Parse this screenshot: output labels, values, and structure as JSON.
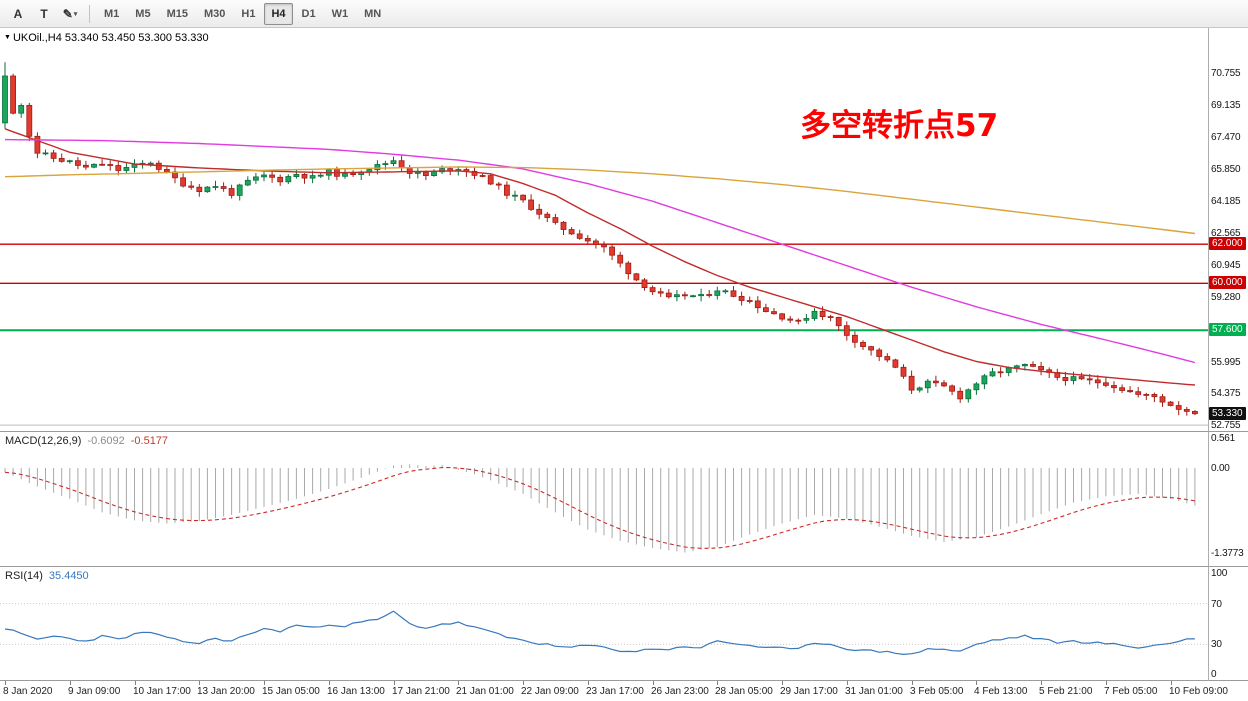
{
  "toolbar": {
    "tool_buttons": [
      {
        "name": "cursor",
        "glyph": "A"
      },
      {
        "name": "text",
        "glyph": "T"
      },
      {
        "name": "draw",
        "glyph": "✎",
        "dropdown": "▾"
      }
    ],
    "timeframes": [
      "M1",
      "M5",
      "M15",
      "M30",
      "H1",
      "H4",
      "D1",
      "W1",
      "MN"
    ],
    "active_timeframe": "H4"
  },
  "chart_header": {
    "marker": "▼",
    "text": "UKOil.,H4 53.340 53.450 53.300 53.330"
  },
  "chart_data": {
    "type": "candlestick",
    "symbol": "UKOil",
    "timeframe": "H4",
    "ohlc_current": {
      "open": "53.340",
      "high": "53.450",
      "low": "53.300",
      "close": "53.330"
    },
    "bars": 148,
    "bars_per_label": 8,
    "price_axis_ticks": [
      "70.755",
      "69.135",
      "67.470",
      "65.850",
      "64.185",
      "62.565",
      "60.945",
      "59.280",
      "57.660",
      "55.995",
      "54.375",
      "52.755"
    ],
    "time_axis_labels": [
      "8 Jan 2020",
      "9 Jan 09:00",
      "10 Jan 17:00",
      "13 Jan 20:00",
      "15 Jan 05:00",
      "16 Jan 13:00",
      "17 Jan 21:00",
      "21 Jan 01:00",
      "22 Jan 09:00",
      "23 Jan 17:00",
      "26 Jan 23:00",
      "28 Jan 05:00",
      "29 Jan 17:00",
      "31 Jan 01:00",
      "3 Feb 05:00",
      "4 Feb 13:00",
      "5 Feb 21:00",
      "7 Feb 05:00",
      "10 Feb 09:00"
    ],
    "hlines": [
      {
        "value": 62.0,
        "label": "62.000",
        "color": "#cc0000",
        "width": 1.3
      },
      {
        "value": 60.0,
        "label": "60.000",
        "color": "#cc0000",
        "width": 1.3
      },
      {
        "value": 57.6,
        "label": "57.600",
        "color": "#00b050",
        "width": 2
      },
      {
        "value": 52.75,
        "label": "",
        "color": "#bdbdbd",
        "width": 1
      }
    ],
    "current_price": {
      "value": 53.33,
      "label": "53.330",
      "bg": "#111111"
    },
    "annotation": {
      "text": "多空转折点57",
      "color": "#FF0000"
    },
    "colors": {
      "up": "#1ba55d",
      "up_dark": "#0c6e3d",
      "down": "#e23a2e",
      "down_dark": "#9c1f15"
    },
    "close_anchors": [
      [
        0,
        70.6
      ],
      [
        1,
        68.7
      ],
      [
        2,
        69.1
      ],
      [
        3,
        67.6
      ],
      [
        4,
        66.7
      ],
      [
        6,
        66.4
      ],
      [
        8,
        66.2
      ],
      [
        10,
        65.9
      ],
      [
        12,
        66.1
      ],
      [
        14,
        65.8
      ],
      [
        16,
        66.0
      ],
      [
        18,
        66.2
      ],
      [
        20,
        65.6
      ],
      [
        22,
        65.1
      ],
      [
        24,
        64.8
      ],
      [
        26,
        65.0
      ],
      [
        28,
        64.6
      ],
      [
        30,
        65.2
      ],
      [
        32,
        65.5
      ],
      [
        34,
        65.3
      ],
      [
        36,
        65.6
      ],
      [
        38,
        65.4
      ],
      [
        40,
        65.7
      ],
      [
        42,
        65.5
      ],
      [
        44,
        65.8
      ],
      [
        46,
        66.0
      ],
      [
        48,
        66.3
      ],
      [
        50,
        65.7
      ],
      [
        52,
        65.5
      ],
      [
        54,
        65.8
      ],
      [
        56,
        65.9
      ],
      [
        58,
        65.6
      ],
      [
        60,
        65.2
      ],
      [
        62,
        64.6
      ],
      [
        64,
        64.2
      ],
      [
        66,
        63.6
      ],
      [
        68,
        63.0
      ],
      [
        70,
        62.6
      ],
      [
        72,
        62.2
      ],
      [
        74,
        61.8
      ],
      [
        76,
        61.0
      ],
      [
        78,
        60.2
      ],
      [
        80,
        59.6
      ],
      [
        82,
        59.2
      ],
      [
        84,
        59.4
      ],
      [
        86,
        59.3
      ],
      [
        88,
        59.7
      ],
      [
        90,
        59.4
      ],
      [
        92,
        59.1
      ],
      [
        94,
        58.6
      ],
      [
        96,
        58.3
      ],
      [
        98,
        58.0
      ],
      [
        100,
        58.6
      ],
      [
        102,
        58.2
      ],
      [
        104,
        57.4
      ],
      [
        106,
        56.8
      ],
      [
        108,
        56.3
      ],
      [
        110,
        55.7
      ],
      [
        112,
        54.6
      ],
      [
        114,
        54.9
      ],
      [
        116,
        54.7
      ],
      [
        118,
        54.2
      ],
      [
        120,
        54.9
      ],
      [
        122,
        55.4
      ],
      [
        124,
        55.6
      ],
      [
        126,
        55.8
      ],
      [
        128,
        55.5
      ],
      [
        130,
        55.2
      ],
      [
        132,
        55.1
      ],
      [
        134,
        55.0
      ],
      [
        136,
        54.9
      ],
      [
        138,
        54.6
      ],
      [
        140,
        54.3
      ],
      [
        142,
        54.2
      ],
      [
        144,
        53.8
      ],
      [
        146,
        53.45
      ],
      [
        147,
        53.33
      ]
    ],
    "moving_averages": [
      {
        "name": "ma-fast-red",
        "color": "#c22b2b",
        "anchors": [
          [
            0,
            67.9
          ],
          [
            8,
            66.7
          ],
          [
            16,
            66.1
          ],
          [
            24,
            65.9
          ],
          [
            32,
            65.75
          ],
          [
            40,
            65.65
          ],
          [
            48,
            65.7
          ],
          [
            56,
            65.75
          ],
          [
            60,
            65.6
          ],
          [
            64,
            65.1
          ],
          [
            68,
            64.5
          ],
          [
            72,
            63.6
          ],
          [
            76,
            62.8
          ],
          [
            80,
            61.9
          ],
          [
            84,
            61.1
          ],
          [
            88,
            60.4
          ],
          [
            92,
            59.8
          ],
          [
            96,
            59.3
          ],
          [
            100,
            58.8
          ],
          [
            104,
            58.3
          ],
          [
            108,
            57.7
          ],
          [
            112,
            57.1
          ],
          [
            116,
            56.5
          ],
          [
            120,
            56.0
          ],
          [
            124,
            55.7
          ],
          [
            128,
            55.5
          ],
          [
            132,
            55.35
          ],
          [
            136,
            55.2
          ],
          [
            140,
            55.05
          ],
          [
            144,
            54.9
          ],
          [
            147,
            54.8
          ]
        ]
      },
      {
        "name": "ma-mid-magenta",
        "color": "#e03ce0",
        "anchors": [
          [
            0,
            67.35
          ],
          [
            12,
            67.3
          ],
          [
            24,
            67.15
          ],
          [
            32,
            67.0
          ],
          [
            40,
            66.85
          ],
          [
            48,
            66.6
          ],
          [
            56,
            66.3
          ],
          [
            64,
            65.85
          ],
          [
            72,
            65.1
          ],
          [
            80,
            64.2
          ],
          [
            88,
            63.1
          ],
          [
            96,
            62.0
          ],
          [
            104,
            60.9
          ],
          [
            112,
            59.8
          ],
          [
            120,
            58.8
          ],
          [
            128,
            57.9
          ],
          [
            134,
            57.3
          ],
          [
            140,
            56.7
          ],
          [
            147,
            55.95
          ]
        ]
      },
      {
        "name": "ma-slow-orange",
        "color": "#d9a43b",
        "anchors": [
          [
            0,
            65.45
          ],
          [
            8,
            65.55
          ],
          [
            16,
            65.62
          ],
          [
            24,
            65.7
          ],
          [
            32,
            65.78
          ],
          [
            40,
            65.85
          ],
          [
            48,
            65.9
          ],
          [
            56,
            65.95
          ],
          [
            64,
            65.92
          ],
          [
            72,
            65.8
          ],
          [
            80,
            65.6
          ],
          [
            88,
            65.35
          ],
          [
            96,
            65.05
          ],
          [
            104,
            64.7
          ],
          [
            112,
            64.3
          ],
          [
            120,
            63.9
          ],
          [
            128,
            63.5
          ],
          [
            136,
            63.1
          ],
          [
            142,
            62.8
          ],
          [
            147,
            62.55
          ]
        ]
      }
    ],
    "macd": {
      "name": "MACD(12,26,9)",
      "main_value": "-0.6092",
      "signal_value": "-0.5177",
      "histogram_color": "#a9a9a9",
      "signal_color": "#cc2b2b",
      "ticks": [
        {
          "label": "0.561",
          "value": 0.561
        },
        {
          "label": "0.00",
          "value": 0
        },
        {
          "label": "-1.3773",
          "value": -1.3773
        }
      ],
      "anchors": [
        [
          0,
          -0.07
        ],
        [
          4,
          -0.3
        ],
        [
          8,
          -0.5
        ],
        [
          12,
          -0.72
        ],
        [
          16,
          -0.85
        ],
        [
          20,
          -0.9
        ],
        [
          24,
          -0.86
        ],
        [
          28,
          -0.76
        ],
        [
          32,
          -0.63
        ],
        [
          36,
          -0.5
        ],
        [
          40,
          -0.34
        ],
        [
          44,
          -0.16
        ],
        [
          46,
          -0.06
        ],
        [
          48,
          0.04
        ],
        [
          50,
          0.06
        ],
        [
          52,
          0.03
        ],
        [
          54,
          0.05
        ],
        [
          56,
          -0.03
        ],
        [
          58,
          -0.1
        ],
        [
          60,
          -0.2
        ],
        [
          64,
          -0.42
        ],
        [
          68,
          -0.72
        ],
        [
          72,
          -1.0
        ],
        [
          76,
          -1.18
        ],
        [
          80,
          -1.3
        ],
        [
          84,
          -1.37
        ],
        [
          88,
          -1.28
        ],
        [
          92,
          -1.08
        ],
        [
          96,
          -0.9
        ],
        [
          100,
          -0.76
        ],
        [
          104,
          -0.82
        ],
        [
          108,
          -0.95
        ],
        [
          112,
          -1.1
        ],
        [
          116,
          -1.2
        ],
        [
          120,
          -1.12
        ],
        [
          124,
          -0.95
        ],
        [
          128,
          -0.75
        ],
        [
          132,
          -0.56
        ],
        [
          136,
          -0.46
        ],
        [
          140,
          -0.42
        ],
        [
          144,
          -0.5
        ],
        [
          147,
          -0.6092
        ]
      ]
    },
    "rsi": {
      "name": "RSI(14)",
      "value": "35.4450",
      "color": "#3878bd",
      "levels": [
        70,
        30
      ],
      "ticks": [
        {
          "label": "100",
          "value": 100
        },
        {
          "label": "70",
          "value": 70
        },
        {
          "label": "30",
          "value": 30
        },
        {
          "label": "0",
          "value": 0
        }
      ],
      "anchors": [
        [
          0,
          46
        ],
        [
          2,
          40
        ],
        [
          4,
          35
        ],
        [
          6,
          38
        ],
        [
          8,
          36
        ],
        [
          10,
          33
        ],
        [
          12,
          38
        ],
        [
          14,
          35
        ],
        [
          16,
          40
        ],
        [
          18,
          42
        ],
        [
          20,
          36
        ],
        [
          22,
          33
        ],
        [
          24,
          31
        ],
        [
          26,
          36
        ],
        [
          28,
          33
        ],
        [
          30,
          40
        ],
        [
          32,
          45
        ],
        [
          34,
          43
        ],
        [
          36,
          49
        ],
        [
          38,
          46
        ],
        [
          40,
          50
        ],
        [
          42,
          48
        ],
        [
          44,
          52
        ],
        [
          46,
          54
        ],
        [
          48,
          62
        ],
        [
          50,
          50
        ],
        [
          52,
          46
        ],
        [
          54,
          50
        ],
        [
          56,
          51
        ],
        [
          58,
          47
        ],
        [
          60,
          42
        ],
        [
          62,
          37
        ],
        [
          64,
          34
        ],
        [
          66,
          31
        ],
        [
          68,
          28
        ],
        [
          70,
          27
        ],
        [
          72,
          29
        ],
        [
          74,
          27
        ],
        [
          76,
          24
        ],
        [
          78,
          23
        ],
        [
          80,
          26
        ],
        [
          82,
          25
        ],
        [
          84,
          28
        ],
        [
          86,
          27
        ],
        [
          88,
          33
        ],
        [
          90,
          31
        ],
        [
          92,
          29
        ],
        [
          94,
          27
        ],
        [
          96,
          26
        ],
        [
          98,
          25
        ],
        [
          100,
          32
        ],
        [
          102,
          30
        ],
        [
          104,
          26
        ],
        [
          106,
          24
        ],
        [
          108,
          23
        ],
        [
          110,
          22
        ],
        [
          112,
          20
        ],
        [
          114,
          26
        ],
        [
          116,
          25
        ],
        [
          118,
          23
        ],
        [
          120,
          30
        ],
        [
          122,
          34
        ],
        [
          124,
          36
        ],
        [
          126,
          38
        ],
        [
          128,
          35
        ],
        [
          130,
          32
        ],
        [
          132,
          33
        ],
        [
          134,
          32
        ],
        [
          136,
          31
        ],
        [
          138,
          29
        ],
        [
          140,
          27
        ],
        [
          142,
          29
        ],
        [
          144,
          31
        ],
        [
          145,
          33
        ],
        [
          146,
          36
        ],
        [
          147,
          35.44
        ]
      ]
    }
  }
}
